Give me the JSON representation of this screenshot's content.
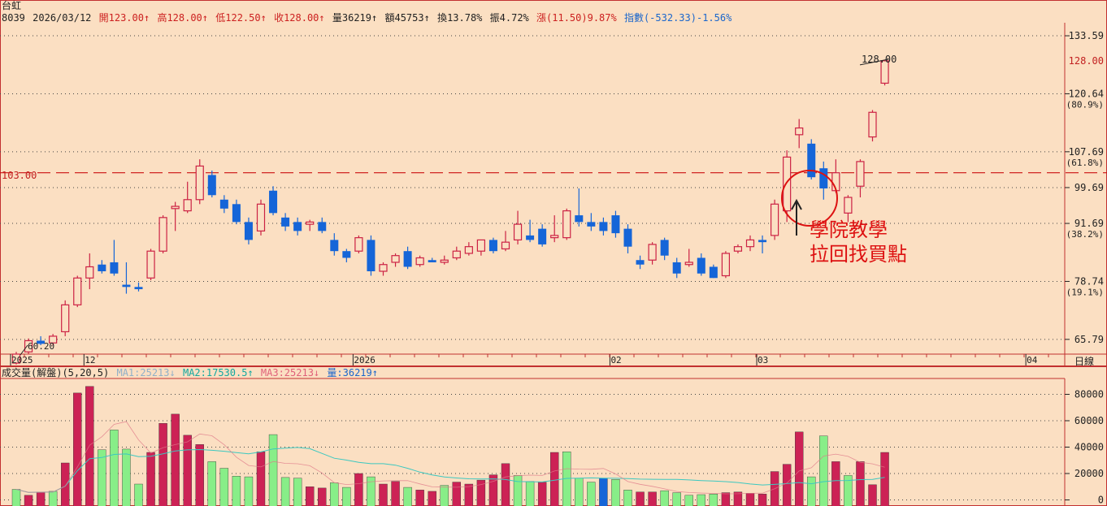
{
  "stock": {
    "name": "台虹",
    "code": "8039",
    "date": "2026/03/12",
    "open": "開123.00↑",
    "high": "高128.00↑",
    "low": "低122.50↑",
    "close": "收128.00↑",
    "volume": "量36219↑",
    "amount": "額45753↑",
    "turnover": "換13.78%",
    "amplitude": "振4.72%",
    "change": "漲(11.50)9.87%",
    "index": "指數(-532.33)-1.56%"
  },
  "volume_header": {
    "title": "成交量(解盤)(5,20,5)",
    "ma1": "MA1:25213↓",
    "ma2": "MA2:17530.5↑",
    "ma3": "MA3:25213↓",
    "vol": "量:36219↑"
  },
  "annotation": {
    "line1": "學院教學",
    "line2": "拉回找買點",
    "arrow": "↑"
  },
  "labels": {
    "ref_line_label": "103.00",
    "last_price_label": "128.00",
    "low_marker": "60.20",
    "time_axis_label": "日線"
  },
  "colors": {
    "background": "#fbdfc2",
    "up": "#cc2244",
    "down": "#1565d8",
    "vol_up": "#cc2255",
    "vol_down": "#88ee88",
    "grid": "#444444",
    "ref_line": "#cc1111"
  },
  "chart_data": [
    {
      "type": "candlestick",
      "title": "",
      "y_ticks": [
        65.79,
        78.74,
        91.69,
        99.69,
        107.69,
        120.64,
        133.59
      ],
      "y_tick_labels": [
        "65.79",
        "78.74",
        "91.69",
        "99.69",
        "107.69",
        "120.64",
        "133.59"
      ],
      "y_fib_labels": [
        {
          "value": 91.69,
          "label": "(38.2%)"
        },
        {
          "value": 107.69,
          "label": "(61.8%)"
        },
        {
          "value": 120.64,
          "label": "(80.9%)"
        },
        {
          "value": 78.74,
          "label": "(19.1%)"
        }
      ],
      "ylim": [
        62.5,
        136.5
      ],
      "reference_line": 103.0,
      "last_price": 128.0,
      "x_labels": [
        "2025",
        "12",
        "2026",
        "02",
        "03",
        "04"
      ],
      "x_label_index": [
        0,
        6,
        28,
        49,
        61,
        83
      ],
      "candles": [
        {
          "o": 60.5,
          "h": 63.0,
          "l": 60.2,
          "c": 62.5
        },
        {
          "o": 63.0,
          "h": 66.0,
          "l": 62.5,
          "c": 65.5
        },
        {
          "o": 65.5,
          "h": 66.5,
          "l": 64.5,
          "c": 64.8
        },
        {
          "o": 65.0,
          "h": 67.0,
          "l": 64.5,
          "c": 66.5
        },
        {
          "o": 67.5,
          "h": 74.5,
          "l": 66.5,
          "c": 73.5
        },
        {
          "o": 73.5,
          "h": 80.0,
          "l": 73.0,
          "c": 79.5
        },
        {
          "o": 79.5,
          "h": 85.0,
          "l": 77.0,
          "c": 82.0
        },
        {
          "o": 82.5,
          "h": 83.5,
          "l": 80.5,
          "c": 81.0
        },
        {
          "o": 83.0,
          "h": 88.0,
          "l": 80.0,
          "c": 80.5
        },
        {
          "o": 78.0,
          "h": 83.0,
          "l": 76.0,
          "c": 77.5
        },
        {
          "o": 77.5,
          "h": 78.5,
          "l": 76.5,
          "c": 77.0
        },
        {
          "o": 79.5,
          "h": 86.0,
          "l": 79.0,
          "c": 85.5
        },
        {
          "o": 85.5,
          "h": 93.5,
          "l": 85.0,
          "c": 93.0
        },
        {
          "o": 95.0,
          "h": 96.5,
          "l": 90.0,
          "c": 95.5
        },
        {
          "o": 94.5,
          "h": 101.0,
          "l": 94.0,
          "c": 97.0
        },
        {
          "o": 97.0,
          "h": 106.0,
          "l": 96.0,
          "c": 104.5
        },
        {
          "o": 102.5,
          "h": 103.5,
          "l": 97.5,
          "c": 98.0
        },
        {
          "o": 97.0,
          "h": 98.0,
          "l": 94.0,
          "c": 95.0
        },
        {
          "o": 96.0,
          "h": 97.0,
          "l": 91.5,
          "c": 92.0
        },
        {
          "o": 92.0,
          "h": 93.0,
          "l": 87.0,
          "c": 88.0
        },
        {
          "o": 90.0,
          "h": 97.0,
          "l": 89.0,
          "c": 96.0
        },
        {
          "o": 99.0,
          "h": 100.0,
          "l": 93.5,
          "c": 94.0
        },
        {
          "o": 93.0,
          "h": 94.0,
          "l": 90.0,
          "c": 91.0
        },
        {
          "o": 92.0,
          "h": 93.0,
          "l": 89.0,
          "c": 90.0
        },
        {
          "o": 91.5,
          "h": 92.5,
          "l": 90.0,
          "c": 92.0
        },
        {
          "o": 92.0,
          "h": 93.0,
          "l": 89.5,
          "c": 90.0
        },
        {
          "o": 88.0,
          "h": 89.5,
          "l": 84.5,
          "c": 85.5
        },
        {
          "o": 85.5,
          "h": 86.0,
          "l": 83.0,
          "c": 84.0
        },
        {
          "o": 85.5,
          "h": 89.0,
          "l": 85.0,
          "c": 88.5
        },
        {
          "o": 88.0,
          "h": 89.0,
          "l": 80.0,
          "c": 81.0
        },
        {
          "o": 81.0,
          "h": 83.0,
          "l": 80.0,
          "c": 82.5
        },
        {
          "o": 83.0,
          "h": 85.0,
          "l": 82.0,
          "c": 84.5
        },
        {
          "o": 85.5,
          "h": 86.5,
          "l": 81.5,
          "c": 82.0
        },
        {
          "o": 82.5,
          "h": 84.5,
          "l": 82.0,
          "c": 84.0
        },
        {
          "o": 83.5,
          "h": 84.0,
          "l": 83.0,
          "c": 83.0
        },
        {
          "o": 83.0,
          "h": 84.5,
          "l": 82.5,
          "c": 83.5
        },
        {
          "o": 84.0,
          "h": 86.5,
          "l": 83.5,
          "c": 85.5
        },
        {
          "o": 85.0,
          "h": 87.5,
          "l": 84.5,
          "c": 86.5
        },
        {
          "o": 85.5,
          "h": 88.0,
          "l": 84.5,
          "c": 88.0
        },
        {
          "o": 88.0,
          "h": 88.5,
          "l": 85.0,
          "c": 85.5
        },
        {
          "o": 86.0,
          "h": 90.0,
          "l": 85.5,
          "c": 87.5
        },
        {
          "o": 88.0,
          "h": 94.5,
          "l": 87.0,
          "c": 91.5
        },
        {
          "o": 89.0,
          "h": 92.5,
          "l": 87.5,
          "c": 88.0
        },
        {
          "o": 90.5,
          "h": 91.5,
          "l": 86.5,
          "c": 87.0
        },
        {
          "o": 88.5,
          "h": 93.5,
          "l": 87.5,
          "c": 89.0
        },
        {
          "o": 88.5,
          "h": 95.0,
          "l": 88.0,
          "c": 94.5
        },
        {
          "o": 93.5,
          "h": 99.5,
          "l": 91.0,
          "c": 92.0
        },
        {
          "o": 92.0,
          "h": 94.0,
          "l": 90.0,
          "c": 91.0
        },
        {
          "o": 92.0,
          "h": 93.0,
          "l": 89.0,
          "c": 90.0
        },
        {
          "o": 93.5,
          "h": 94.5,
          "l": 88.5,
          "c": 89.5
        },
        {
          "o": 90.5,
          "h": 91.5,
          "l": 85.0,
          "c": 86.5
        },
        {
          "o": 83.5,
          "h": 84.5,
          "l": 81.5,
          "c": 82.5
        },
        {
          "o": 83.5,
          "h": 87.5,
          "l": 82.5,
          "c": 87.0
        },
        {
          "o": 88.0,
          "h": 88.5,
          "l": 83.5,
          "c": 84.5
        },
        {
          "o": 83.0,
          "h": 84.0,
          "l": 79.5,
          "c": 80.5
        },
        {
          "o": 82.5,
          "h": 86.0,
          "l": 82.0,
          "c": 83.0
        },
        {
          "o": 84.0,
          "h": 85.0,
          "l": 80.0,
          "c": 80.5
        },
        {
          "o": 82.0,
          "h": 82.5,
          "l": 79.5,
          "c": 79.5
        },
        {
          "o": 80.0,
          "h": 85.5,
          "l": 79.5,
          "c": 85.0
        },
        {
          "o": 85.5,
          "h": 87.0,
          "l": 85.0,
          "c": 86.5
        },
        {
          "o": 86.5,
          "h": 89.0,
          "l": 85.5,
          "c": 88.0
        },
        {
          "o": 88.0,
          "h": 89.0,
          "l": 85.0,
          "c": 87.5
        },
        {
          "o": 89.0,
          "h": 97.0,
          "l": 88.0,
          "c": 96.0
        },
        {
          "o": 94.5,
          "h": 108.0,
          "l": 92.0,
          "c": 106.5
        },
        {
          "o": 111.5,
          "h": 115.0,
          "l": 108.5,
          "c": 113.0
        },
        {
          "o": 109.5,
          "h": 110.5,
          "l": 101.5,
          "c": 102.0
        },
        {
          "o": 104.0,
          "h": 105.5,
          "l": 97.0,
          "c": 99.5
        },
        {
          "o": 99.0,
          "h": 106.0,
          "l": 98.5,
          "c": 103.0
        },
        {
          "o": 94.0,
          "h": 98.0,
          "l": 92.0,
          "c": 97.5
        },
        {
          "o": 100.0,
          "h": 106.0,
          "l": 97.5,
          "c": 105.5
        },
        {
          "o": 111.0,
          "h": 117.0,
          "l": 110.0,
          "c": 116.5
        },
        {
          "o": 123.0,
          "h": 128.0,
          "l": 122.5,
          "c": 128.0
        }
      ]
    },
    {
      "type": "bar",
      "title": "成交量(解盤)(5,20,5)",
      "y_ticks": [
        0,
        20000,
        40000,
        60000,
        80000
      ],
      "y_tick_labels": [
        "0",
        "20000",
        "40000",
        "60000",
        "80000"
      ],
      "ylim": [
        -4000,
        92000
      ],
      "series": [
        {
          "name": "MA1",
          "color": "#e07a8a"
        },
        {
          "name": "MA2",
          "color": "#3cc8c0"
        },
        {
          "name": "MA3",
          "color": "#e07a8a"
        },
        {
          "name": "量"
        }
      ],
      "bars": [
        {
          "v": 8000,
          "up": false
        },
        {
          "v": 3500,
          "up": true
        },
        {
          "v": 6000,
          "up": true
        },
        {
          "v": 6500,
          "up": false
        },
        {
          "v": 28000,
          "up": true
        },
        {
          "v": 81000,
          "up": true
        },
        {
          "v": 86000,
          "up": true
        },
        {
          "v": 38000,
          "up": false
        },
        {
          "v": 53000,
          "up": false
        },
        {
          "v": 38500,
          "up": false
        },
        {
          "v": 12000,
          "up": false
        },
        {
          "v": 36000,
          "up": true
        },
        {
          "v": 58000,
          "up": true
        },
        {
          "v": 65000,
          "up": true
        },
        {
          "v": 49000,
          "up": true
        },
        {
          "v": 42000,
          "up": true
        },
        {
          "v": 29000,
          "up": false
        },
        {
          "v": 24000,
          "up": false
        },
        {
          "v": 18000,
          "up": false
        },
        {
          "v": 17500,
          "up": false
        },
        {
          "v": 36500,
          "up": true
        },
        {
          "v": 49500,
          "up": false
        },
        {
          "v": 17000,
          "up": false
        },
        {
          "v": 16500,
          "up": false
        },
        {
          "v": 10000,
          "up": true
        },
        {
          "v": 9000,
          "up": true
        },
        {
          "v": 13000,
          "up": false
        },
        {
          "v": 9500,
          "up": false
        },
        {
          "v": 20000,
          "up": true
        },
        {
          "v": 17500,
          "up": false
        },
        {
          "v": 12000,
          "up": true
        },
        {
          "v": 14000,
          "up": true
        },
        {
          "v": 9500,
          "up": false
        },
        {
          "v": 7500,
          "up": true
        },
        {
          "v": 6500,
          "up": true
        },
        {
          "v": 11000,
          "up": false
        },
        {
          "v": 13500,
          "up": true
        },
        {
          "v": 12000,
          "up": true
        },
        {
          "v": 15000,
          "up": true
        },
        {
          "v": 19000,
          "up": true
        },
        {
          "v": 27500,
          "up": true
        },
        {
          "v": 18500,
          "up": false
        },
        {
          "v": 14000,
          "up": false
        },
        {
          "v": 13500,
          "up": true
        },
        {
          "v": 36000,
          "up": true
        },
        {
          "v": 36500,
          "up": false
        },
        {
          "v": 16500,
          "up": false
        },
        {
          "v": 13500,
          "up": false
        },
        {
          "v": 16500,
          "up": false,
          "highlight": true
        },
        {
          "v": 15500,
          "up": false
        },
        {
          "v": 7500,
          "up": false
        },
        {
          "v": 6000,
          "up": true
        },
        {
          "v": 6000,
          "up": true
        },
        {
          "v": 7000,
          "up": false
        },
        {
          "v": 5500,
          "up": false
        },
        {
          "v": 3500,
          "up": false
        },
        {
          "v": 4000,
          "up": false
        },
        {
          "v": 4500,
          "up": false
        },
        {
          "v": 5500,
          "up": true
        },
        {
          "v": 6000,
          "up": true
        },
        {
          "v": 5000,
          "up": true
        },
        {
          "v": 4500,
          "up": true
        },
        {
          "v": 21500,
          "up": true
        },
        {
          "v": 27000,
          "up": true
        },
        {
          "v": 51500,
          "up": true
        },
        {
          "v": 17500,
          "up": false
        },
        {
          "v": 48500,
          "up": false
        },
        {
          "v": 29000,
          "up": true
        },
        {
          "v": 18500,
          "up": false
        },
        {
          "v": 29000,
          "up": true
        },
        {
          "v": 11500,
          "up": true
        },
        {
          "v": 36000,
          "up": true
        }
      ]
    }
  ]
}
